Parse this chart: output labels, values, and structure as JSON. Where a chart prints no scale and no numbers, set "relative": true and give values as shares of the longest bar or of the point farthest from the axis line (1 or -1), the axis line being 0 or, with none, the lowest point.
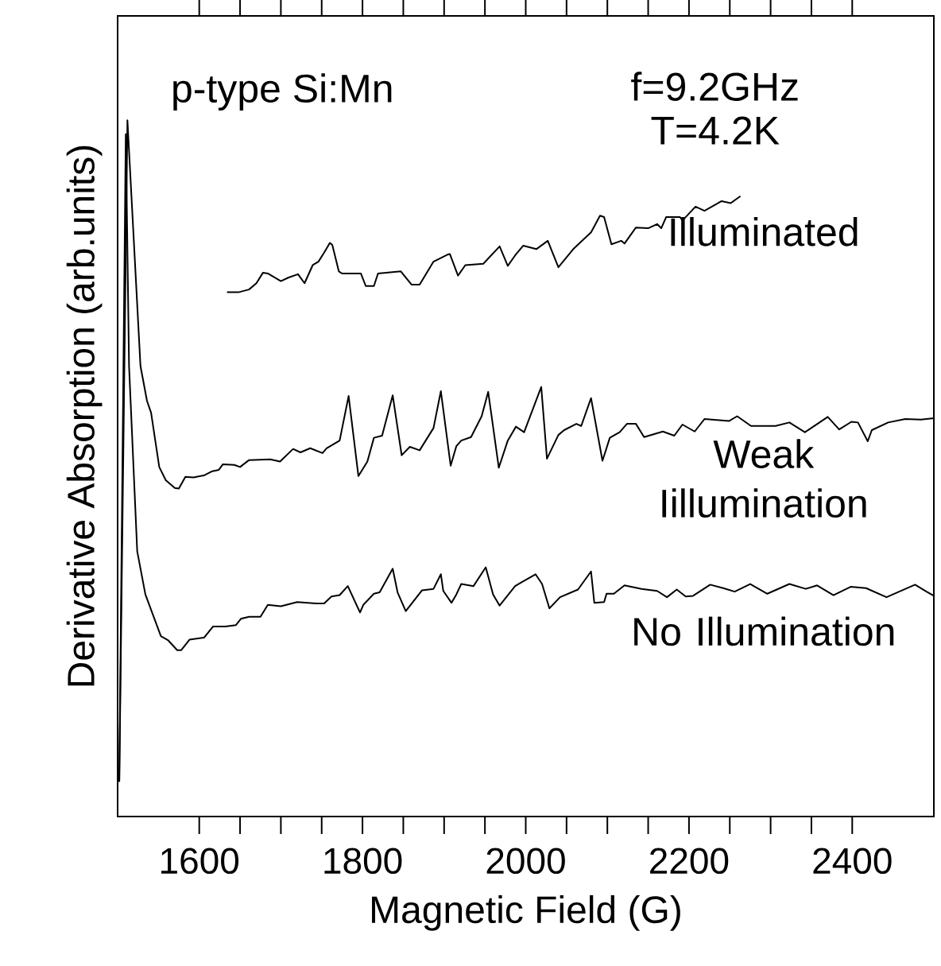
{
  "chart_data": {
    "type": "line",
    "relative": true,
    "xlabel": "Magnetic Field (G)",
    "ylabel": "Derivative Absorption (arb.units)",
    "annotations": [
      "p-type Si:Mn",
      "f=9.2GHz",
      "T=4.2K"
    ],
    "xlim": [
      1500,
      2500
    ],
    "xticks": [
      1600,
      1800,
      2000,
      2200,
      2400
    ],
    "series": [
      {
        "name": "Illuminated",
        "color": "#000000",
        "x": [
          1634,
          1648,
          1661,
          1670,
          1678,
          1684,
          1700,
          1709,
          1721,
          1729,
          1739,
          1746,
          1753,
          1760,
          1763,
          1771,
          1775,
          1798,
          1804,
          1814,
          1819,
          1847,
          1860,
          1870,
          1887,
          1904,
          1907,
          1917,
          1926,
          1948,
          1968,
          1978,
          1987,
          1997,
          2013,
          2027,
          2040,
          2059,
          2080,
          2091,
          2096,
          2105,
          2117,
          2121,
          2135,
          2150,
          2161,
          2166,
          2172,
          2189,
          2192,
          2208,
          2219,
          2240,
          2251,
          2263
        ],
        "values": [
          0.753,
          0.753,
          0.757,
          0.766,
          0.781,
          0.78,
          0.769,
          0.774,
          0.779,
          0.766,
          0.792,
          0.797,
          0.81,
          0.824,
          0.821,
          0.783,
          0.78,
          0.78,
          0.762,
          0.762,
          0.78,
          0.783,
          0.764,
          0.764,
          0.797,
          0.807,
          0.808,
          0.777,
          0.792,
          0.794,
          0.819,
          0.791,
          0.806,
          0.82,
          0.815,
          0.827,
          0.789,
          0.816,
          0.839,
          0.863,
          0.861,
          0.822,
          0.827,
          0.823,
          0.846,
          0.845,
          0.851,
          0.845,
          0.861,
          0.861,
          0.856,
          0.876,
          0.87,
          0.884,
          0.881,
          0.891
        ]
      },
      {
        "name": "Weak Iillumination",
        "color": "#000000",
        "x": [
          1502,
          1512,
          1528,
          1536,
          1541,
          1551,
          1559,
          1570,
          1575,
          1583,
          1593,
          1606,
          1616,
          1624,
          1629,
          1643,
          1650,
          1661,
          1687,
          1699,
          1715,
          1724,
          1736,
          1751,
          1756,
          1772,
          1783,
          1795,
          1806,
          1814,
          1824,
          1837,
          1848,
          1858,
          1870,
          1887,
          1896,
          1908,
          1915,
          1921,
          1933,
          1946,
          1954,
          1967,
          1978,
          1988,
          1998,
          2019,
          2026,
          2040,
          2047,
          2062,
          2068,
          2080,
          2094,
          2103,
          2115,
          2124,
          2135,
          2145,
          2168,
          2182,
          2192,
          2207,
          2219,
          2249,
          2259,
          2276,
          2306,
          2323,
          2342,
          2370,
          2384,
          2399,
          2407,
          2419,
          2424,
          2444,
          2465,
          2484,
          2500
        ],
        "values": [
          0.05,
          1.0,
          0.647,
          0.597,
          0.58,
          0.502,
          0.483,
          0.472,
          0.471,
          0.488,
          0.487,
          0.49,
          0.496,
          0.498,
          0.506,
          0.505,
          0.502,
          0.512,
          0.513,
          0.51,
          0.528,
          0.523,
          0.529,
          0.522,
          0.529,
          0.54,
          0.604,
          0.489,
          0.51,
          0.544,
          0.547,
          0.605,
          0.519,
          0.531,
          0.526,
          0.558,
          0.611,
          0.504,
          0.532,
          0.54,
          0.545,
          0.575,
          0.61,
          0.501,
          0.54,
          0.56,
          0.552,
          0.617,
          0.514,
          0.548,
          0.555,
          0.564,
          0.561,
          0.601,
          0.511,
          0.544,
          0.552,
          0.564,
          0.564,
          0.545,
          0.553,
          0.547,
          0.563,
          0.553,
          0.571,
          0.568,
          0.575,
          0.561,
          0.561,
          0.566,
          0.552,
          0.574,
          0.556,
          0.567,
          0.566,
          0.539,
          0.555,
          0.566,
          0.571,
          0.57,
          0.572
        ]
      },
      {
        "name": "No Illumination",
        "color": "#000000",
        "x": [
          1502,
          1510,
          1514,
          1524,
          1534,
          1553,
          1562,
          1573,
          1578,
          1588,
          1606,
          1617,
          1632,
          1645,
          1651,
          1661,
          1675,
          1684,
          1700,
          1720,
          1743,
          1753,
          1762,
          1772,
          1782,
          1797,
          1801,
          1814,
          1821,
          1837,
          1843,
          1853,
          1873,
          1887,
          1896,
          1899,
          1909,
          1915,
          1921,
          1936,
          1951,
          1960,
          1968,
          1987,
          1994,
          2012,
          2020,
          2029,
          2042,
          2064,
          2080,
          2084,
          2096,
          2099,
          2108,
          2121,
          2142,
          2161,
          2173,
          2185,
          2196,
          2205,
          2226,
          2242,
          2256,
          2275,
          2296,
          2323,
          2343,
          2357,
          2377,
          2398,
          2417,
          2442,
          2477,
          2491,
          2500
        ],
        "values": [
          0.05,
          0.98,
          0.647,
          0.381,
          0.319,
          0.259,
          0.253,
          0.239,
          0.239,
          0.254,
          0.257,
          0.273,
          0.273,
          0.275,
          0.284,
          0.287,
          0.287,
          0.304,
          0.302,
          0.308,
          0.306,
          0.306,
          0.316,
          0.318,
          0.331,
          0.293,
          0.304,
          0.32,
          0.322,
          0.356,
          0.322,
          0.295,
          0.325,
          0.327,
          0.348,
          0.324,
          0.307,
          0.319,
          0.334,
          0.331,
          0.358,
          0.319,
          0.303,
          0.331,
          0.336,
          0.348,
          0.334,
          0.299,
          0.315,
          0.326,
          0.352,
          0.307,
          0.308,
          0.32,
          0.32,
          0.332,
          0.327,
          0.324,
          0.315,
          0.326,
          0.316,
          0.317,
          0.333,
          0.328,
          0.323,
          0.334,
          0.32,
          0.334,
          0.327,
          0.332,
          0.318,
          0.33,
          0.328,
          0.315,
          0.333,
          0.323,
          0.317
        ]
      }
    ]
  }
}
